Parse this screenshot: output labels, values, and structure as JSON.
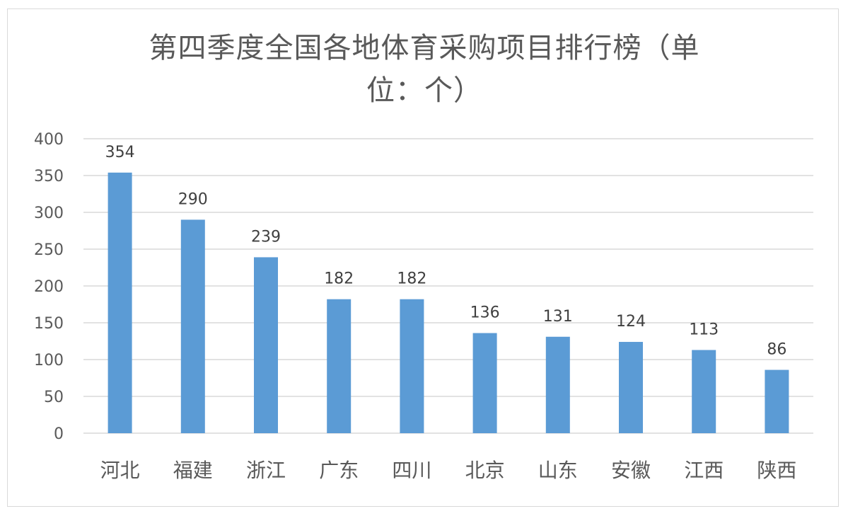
{
  "chart_data": {
    "type": "bar",
    "title": "第四季度全国各地体育采购项目排行榜（单位：个）",
    "title_lines": [
      "第四季度全国各地体育采购项目排行榜（单",
      "位：个）"
    ],
    "categories": [
      "河北",
      "福建",
      "浙江",
      "广东",
      "四川",
      "北京",
      "山东",
      "安徽",
      "江西",
      "陕西"
    ],
    "values": [
      354,
      290,
      239,
      182,
      182,
      136,
      131,
      124,
      113,
      86
    ],
    "ylim": [
      0,
      400
    ],
    "yticks": [
      0,
      50,
      100,
      150,
      200,
      250,
      300,
      350,
      400
    ],
    "grid": true,
    "legend": "none",
    "bar_color": "#5b9bd5",
    "grid_color": "#d9d9d9"
  }
}
